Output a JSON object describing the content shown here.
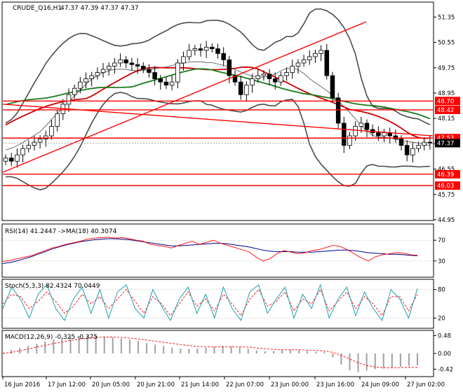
{
  "window": {
    "symbol": "CRUDE_Q16,H1",
    "ohlc": "47.37 47.39 47.37 47.37"
  },
  "colors": {
    "bull": "#000000",
    "bear": "#000000",
    "bands": "#4a4a4a",
    "ma_red": "#cc0000",
    "ma_green": "#1a7a1a",
    "level": "#ff0000",
    "rsi_main": "#ff0000",
    "rsi_ma": "#00008b",
    "stoch_main": "#20a0b0",
    "stoch_signal": "#ff0000",
    "macd_hist": "#a0a0a0",
    "macd_signal": "#ff0000"
  },
  "chart_data": [
    {
      "type": "candlestick",
      "ylim": [
        44.95,
        51.8
      ],
      "y_ticks": [
        "51.35",
        "50.55",
        "49.75",
        "48.95",
        "48.15",
        "47.35",
        "46.55",
        "45.75",
        "44.95"
      ],
      "x_ticks": [
        "16 Jun 2016",
        "17 Jun 12:00",
        "20 Jun 05:00",
        "20 Jun 21:00",
        "21 Jun 14:00",
        "22 Jun 07:00",
        "23 Jun 00:00",
        "23 Jun 16:00",
        "24 Jun 09:00",
        "27 Jun 02:00"
      ],
      "levels": [
        {
          "value": 48.7,
          "label": "48.70"
        },
        {
          "value": 48.42,
          "label": "48.42"
        },
        {
          "value": 47.53,
          "label": "47.53"
        },
        {
          "value": 46.39,
          "label": "46.39"
        },
        {
          "value": 46.03,
          "label": "46.03"
        }
      ],
      "current": {
        "value": 47.37,
        "label": "47.37"
      },
      "trendlines": [
        {
          "x1": 0,
          "y1": 46.45,
          "x2": 0.845,
          "y2": 51.2
        },
        {
          "x1": 0,
          "y1": 48.6,
          "x2": 1,
          "y2": 47.6
        }
      ],
      "close_path": [
        46.9,
        46.8,
        47.0,
        47.2,
        47.3,
        47.4,
        47.5,
        47.6,
        47.9,
        48.3,
        48.6,
        48.9,
        49.1,
        49.3,
        49.4,
        49.5,
        49.6,
        49.7,
        49.8,
        49.9,
        50.0,
        49.9,
        49.85,
        49.8,
        49.7,
        49.6,
        49.4,
        49.3,
        49.2,
        49.3,
        49.9,
        50.1,
        50.3,
        50.35,
        50.3,
        50.4,
        50.35,
        50.2,
        50.0,
        49.5,
        49.3,
        48.9,
        49.2,
        49.4,
        49.5,
        49.55,
        49.4,
        49.3,
        49.5,
        49.6,
        49.8,
        49.9,
        50.0,
        50.1,
        50.2,
        50.3,
        49.5,
        48.8,
        48.0,
        47.3,
        47.6,
        47.9,
        48.0,
        47.8,
        47.7,
        47.6,
        47.7,
        47.6,
        47.5,
        47.3,
        47.0,
        47.2,
        47.3,
        47.4,
        47.37
      ]
    },
    {
      "type": "line",
      "title": "RSI(14) 41.2447  ->MA(18) 40.3074",
      "y_ticks": [
        "70",
        "30"
      ],
      "ylim": [
        0,
        100
      ],
      "series": [
        {
          "name": "RSI",
          "values": [
            29,
            31,
            34,
            37,
            40,
            45,
            50,
            55,
            58,
            62,
            65,
            68,
            72,
            74,
            75,
            76,
            74,
            75,
            73,
            70,
            68,
            62,
            60,
            58,
            55,
            60,
            64,
            68,
            62,
            66,
            70,
            64,
            60,
            56,
            52,
            48,
            38,
            30,
            34,
            44,
            50,
            47,
            44,
            46,
            50,
            52,
            56,
            60,
            58,
            52,
            44,
            36,
            30,
            38,
            42,
            44,
            46,
            45,
            42,
            41
          ]
        },
        {
          "name": "MA",
          "values": [
            25,
            27,
            30,
            34,
            38,
            43,
            48,
            53,
            57,
            61,
            64,
            67,
            69,
            71,
            72,
            73,
            73,
            72,
            71,
            69,
            67,
            65,
            63,
            61,
            59,
            59,
            60,
            61,
            62,
            63,
            64,
            64,
            63,
            61,
            59,
            57,
            54,
            51,
            49,
            48,
            48,
            48,
            47,
            47,
            47,
            48,
            49,
            50,
            51,
            51,
            50,
            48,
            46,
            45,
            44,
            43,
            43,
            42,
            41,
            40
          ]
        }
      ]
    },
    {
      "type": "line",
      "title": "Stoch(5,3,3) 82.4324 70.0449",
      "y_ticks": [
        "80",
        "20"
      ],
      "ylim": [
        0,
        100
      ],
      "series": [
        {
          "name": "main",
          "values": [
            40,
            85,
            60,
            20,
            70,
            90,
            40,
            15,
            60,
            85,
            30,
            80,
            20,
            75,
            90,
            40,
            20,
            80,
            45,
            15,
            60,
            85,
            30,
            70,
            20,
            85,
            40,
            15,
            75,
            90,
            30,
            60,
            85,
            20,
            70,
            40,
            90,
            20,
            60,
            85,
            25,
            75,
            40,
            15,
            80,
            60,
            20,
            82
          ]
        },
        {
          "name": "signal",
          "values": [
            50,
            70,
            65,
            40,
            55,
            75,
            55,
            30,
            45,
            70,
            50,
            65,
            40,
            60,
            80,
            55,
            30,
            65,
            50,
            25,
            50,
            75,
            45,
            60,
            35,
            70,
            50,
            25,
            60,
            80,
            45,
            55,
            75,
            35,
            60,
            50,
            80,
            35,
            55,
            75,
            40,
            65,
            50,
            25,
            65,
            65,
            35,
            70
          ]
        }
      ]
    },
    {
      "type": "bar",
      "title": "MACD(12,26,9) -0.325 -0.375",
      "y_ticks": [
        "0.48",
        "0.00",
        "-0.42"
      ],
      "ylim": [
        -0.6,
        0.6
      ],
      "series": [
        {
          "name": "histogram",
          "values": [
            0.05,
            0.1,
            0.15,
            0.2,
            0.26,
            0.32,
            0.38,
            0.42,
            0.45,
            0.47,
            0.48,
            0.47,
            0.45,
            0.43,
            0.4,
            0.37,
            0.33,
            0.28,
            0.24,
            0.2,
            0.16,
            0.13,
            0.12,
            0.13,
            0.15,
            0.18,
            0.2,
            0.19,
            0.16,
            0.12,
            0.08,
            0.06,
            0.07,
            0.09,
            0.1,
            0.09,
            0.07,
            0.05,
            0.04,
            -0.1,
            -0.3,
            -0.45,
            -0.5,
            -0.46,
            -0.42,
            -0.4,
            -0.38,
            -0.36,
            -0.33,
            -0.32
          ]
        },
        {
          "name": "signal",
          "values": [
            0.0,
            0.03,
            0.07,
            0.12,
            0.17,
            0.22,
            0.27,
            0.31,
            0.35,
            0.38,
            0.41,
            0.43,
            0.44,
            0.44,
            0.43,
            0.41,
            0.39,
            0.36,
            0.33,
            0.3,
            0.27,
            0.24,
            0.21,
            0.19,
            0.18,
            0.18,
            0.18,
            0.18,
            0.18,
            0.17,
            0.15,
            0.13,
            0.11,
            0.1,
            0.1,
            0.1,
            0.09,
            0.08,
            0.07,
            0.03,
            -0.05,
            -0.15,
            -0.25,
            -0.32,
            -0.36,
            -0.38,
            -0.38,
            -0.38,
            -0.37,
            -0.375
          ]
        }
      ]
    }
  ]
}
